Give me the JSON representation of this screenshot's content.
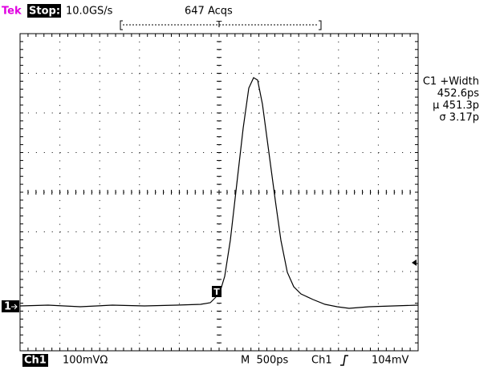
{
  "header": {
    "brand": "Tek",
    "status": "Stop:",
    "sample_rate": "10.0GS/s",
    "acquisitions": "647 Acqs",
    "trigger_mark": "T"
  },
  "measurement": {
    "label": "C1 +Width",
    "value": "452.6ps",
    "mean": "µ 451.3p",
    "std": "σ 3.17p"
  },
  "channel_marker": "1",
  "footer": {
    "channel": "Ch1",
    "scale": "100mVΩ",
    "timebase": "M  500ps",
    "trigger_source": "Ch1",
    "trigger_level": "104mV"
  }
}
